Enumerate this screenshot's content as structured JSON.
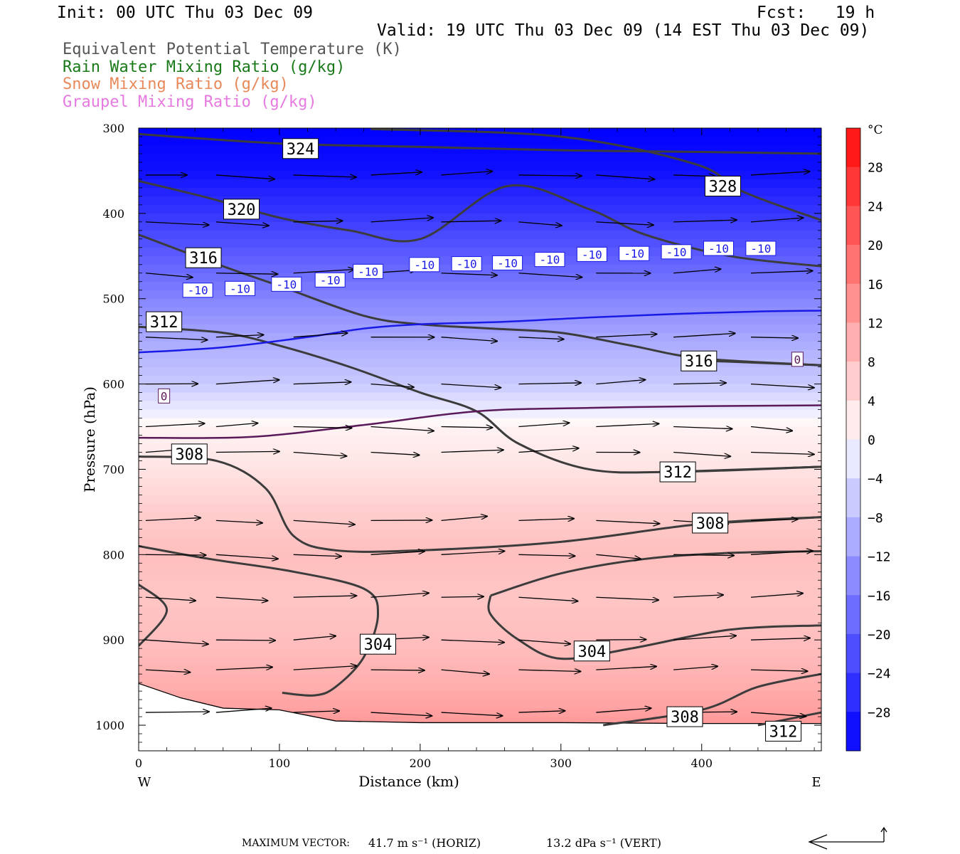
{
  "header": {
    "init": "Init: 00 UTC Thu 03 Dec 09",
    "fcst": "Fcst:   19 h",
    "valid": "Valid: 19 UTC Thu 03 Dec 09 (14 EST Thu 03 Dec 09)"
  },
  "variables": [
    {
      "label": "Equivalent Potential Temperature (K)",
      "color": "#555555"
    },
    {
      "label": "Rain Water Mixing Ratio (g/kg)",
      "color": "#1a7a1a"
    },
    {
      "label": "Snow Mixing Ratio (g/kg)",
      "color": "#e8895a"
    },
    {
      "label": "Graupel Mixing Ratio (g/kg)",
      "color": "#e67ae0"
    }
  ],
  "footer": {
    "max_vector_label": "MAXIMUM VECTOR:",
    "horiz": "41.7 m s⁻¹ (HORIZ)",
    "vert": "13.2 dPa s⁻¹ (VERT)"
  },
  "chart_data": {
    "type": "heatmap",
    "xlabel": "Distance (km)",
    "ylabel": "Pressure (hPa)",
    "xlim": [
      0,
      485
    ],
    "ylim": [
      1030,
      300
    ],
    "x_ticks": [
      0,
      100,
      200,
      300,
      400
    ],
    "y_ticks": [
      300,
      400,
      500,
      600,
      700,
      800,
      900,
      1000
    ],
    "x_end_labels": {
      "left": "W",
      "right": "E"
    },
    "colorbar": {
      "unit": "°C",
      "tick_labels": [
        28,
        24,
        20,
        16,
        12,
        8,
        4,
        0,
        -4,
        -8,
        -12,
        -16,
        -20,
        -24,
        -28
      ],
      "min": -32,
      "max": 32,
      "step": 4
    },
    "temperature_profile": {
      "levels_hpa": [
        300,
        350,
        400,
        450,
        500,
        550,
        600,
        650,
        700,
        750,
        800,
        850,
        900,
        950,
        1000
      ],
      "values_c": [
        -32,
        -30,
        -25,
        -20,
        -15,
        -10,
        -6,
        1,
        3,
        6,
        8,
        7,
        8,
        10,
        13
      ]
    },
    "theta_e_contours": [
      {
        "label": "324",
        "points": [
          [
            0,
            307
          ],
          [
            100,
            318
          ],
          [
            200,
            322
          ],
          [
            300,
            326
          ],
          [
            400,
            328
          ],
          [
            485,
            330
          ]
        ],
        "label_at": [
          115,
          324
        ]
      },
      {
        "label": "328",
        "points": [
          [
            165,
            301
          ],
          [
            300,
            310
          ],
          [
            395,
            342
          ],
          [
            430,
            375
          ],
          [
            485,
            408
          ]
        ],
        "label_at": [
          415,
          368
        ]
      },
      {
        "label": "320",
        "points": [
          [
            0,
            362
          ],
          [
            50,
            382
          ],
          [
            100,
            405
          ],
          [
            150,
            420
          ],
          [
            200,
            430
          ],
          [
            262,
            368
          ],
          [
            320,
            395
          ],
          [
            360,
            425
          ],
          [
            420,
            450
          ],
          [
            485,
            462
          ]
        ],
        "label_at": [
          73,
          395
        ]
      },
      {
        "label": "316",
        "points": [
          [
            0,
            425
          ],
          [
            60,
            462
          ],
          [
            100,
            485
          ],
          [
            160,
            520
          ],
          [
            200,
            530
          ],
          [
            250,
            535
          ],
          [
            300,
            540
          ],
          [
            350,
            555
          ],
          [
            400,
            570
          ],
          [
            485,
            578
          ]
        ],
        "label_at": [
          46,
          452
        ]
      },
      {
        "label": "316",
        "points": [
          [
            392,
            572
          ],
          [
            485,
            578
          ]
        ],
        "label_at": [
          398,
          573
        ]
      },
      {
        "label": "312",
        "points": [
          [
            0,
            533
          ],
          [
            60,
            540
          ],
          [
            100,
            555
          ],
          [
            150,
            580
          ],
          [
            200,
            610
          ],
          [
            240,
            632
          ],
          [
            270,
            670
          ],
          [
            320,
            700
          ],
          [
            380,
            703
          ],
          [
            485,
            697
          ]
        ],
        "label_at": [
          18,
          527
        ]
      },
      {
        "label": "312",
        "points": [
          [
            380,
            703
          ],
          [
            485,
            697
          ]
        ],
        "label_at": [
          383,
          703
        ]
      },
      {
        "label": "308",
        "points": [
          [
            0,
            685
          ],
          [
            55,
            690
          ],
          [
            90,
            722
          ],
          [
            110,
            778
          ],
          [
            140,
            795
          ],
          [
            200,
            795
          ],
          [
            300,
            785
          ],
          [
            400,
            764
          ],
          [
            485,
            756
          ]
        ],
        "label_at": [
          36,
          682
        ]
      },
      {
        "label": "308",
        "points": [
          [
            400,
            764
          ],
          [
            485,
            756
          ]
        ],
        "label_at": [
          406,
          763
        ]
      },
      {
        "label": "304",
        "points": [
          [
            0,
            790
          ],
          [
            50,
            805
          ],
          [
            110,
            820
          ],
          [
            160,
            840
          ],
          [
            170,
            870
          ],
          [
            160,
            920
          ],
          [
            140,
            955
          ],
          [
            125,
            965
          ],
          [
            102,
            962
          ]
        ],
        "label_at": [
          170,
          905
        ]
      },
      {
        "label": "304",
        "points": [
          [
            250,
            848
          ],
          [
            300,
            822
          ],
          [
            360,
            805
          ],
          [
            420,
            798
          ],
          [
            485,
            796
          ]
        ],
        "label_at": [
          322,
          913
        ]
      },
      {
        "label": "304",
        "points": [
          [
            250,
            848
          ],
          [
            250,
            870
          ],
          [
            270,
            900
          ],
          [
            300,
            922
          ],
          [
            350,
            910
          ],
          [
            420,
            888
          ],
          [
            485,
            883
          ]
        ],
        "label_at": [
          322,
          913
        ]
      },
      {
        "label": "308",
        "points": [
          [
            330,
            1000
          ],
          [
            400,
            982
          ],
          [
            440,
            955
          ],
          [
            485,
            940
          ]
        ],
        "label_at": [
          388,
          990
        ]
      },
      {
        "label": "312",
        "points": [
          [
            440,
            1000
          ],
          [
            485,
            985
          ]
        ],
        "label_at": [
          458,
          1007
        ]
      },
      {
        "label": "",
        "points": [
          [
            0,
            835
          ],
          [
            20,
            865
          ],
          [
            0,
            907
          ]
        ],
        "label_at": null
      }
    ],
    "isotherms": [
      {
        "label": "-10",
        "color": "#1a1ae6",
        "points": [
          [
            0,
            563
          ],
          [
            60,
            557
          ],
          [
            120,
            545
          ],
          [
            160,
            535
          ],
          [
            200,
            530
          ],
          [
            260,
            527
          ],
          [
            320,
            522
          ],
          [
            380,
            518
          ],
          [
            440,
            515
          ],
          [
            485,
            514
          ]
        ],
        "labels_at": [
          [
            42,
            490
          ],
          [
            72,
            488
          ],
          [
            105,
            483
          ],
          [
            136,
            478
          ],
          [
            163,
            468
          ],
          [
            203,
            460
          ],
          [
            233,
            459
          ],
          [
            262,
            458
          ],
          [
            292,
            454
          ],
          [
            322,
            448
          ],
          [
            352,
            447
          ],
          [
            382,
            445
          ],
          [
            412,
            441
          ],
          [
            442,
            441
          ]
        ]
      },
      {
        "label": "0",
        "color": "#5a1a5a",
        "points": [
          [
            0,
            663
          ],
          [
            80,
            662
          ],
          [
            160,
            648
          ],
          [
            240,
            632
          ],
          [
            320,
            628
          ],
          [
            400,
            626
          ],
          [
            485,
            625
          ]
        ],
        "labels_at": [
          [
            18,
            614
          ],
          [
            468,
            571
          ]
        ]
      }
    ],
    "surface_pressure": [
      [
        0,
        951
      ],
      [
        30,
        968
      ],
      [
        60,
        980
      ],
      [
        100,
        982
      ],
      [
        140,
        995
      ],
      [
        200,
        997
      ],
      [
        300,
        997
      ],
      [
        400,
        998
      ],
      [
        485,
        998
      ]
    ],
    "wind_arrows": {
      "rows_hpa": [
        355,
        410,
        470,
        545,
        600,
        650,
        680,
        760,
        800,
        850,
        900,
        935,
        985
      ],
      "cols_km": [
        5,
        55,
        110,
        165,
        215,
        270,
        325,
        380,
        435
      ],
      "mean_length_km": 45
    }
  }
}
